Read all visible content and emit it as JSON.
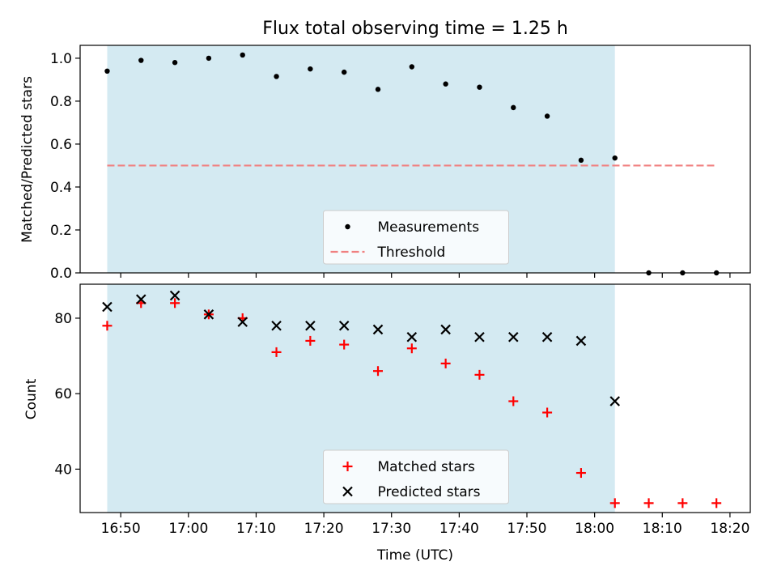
{
  "chart_data": [
    {
      "type": "scatter",
      "title": "Flux total observing time = 1.25 h",
      "xlabel": "",
      "ylabel": "Matched/Predicted stars",
      "ylim": [
        0,
        1.06
      ],
      "yticks": [
        0.0,
        0.2,
        0.4,
        0.6,
        0.8,
        1.0
      ],
      "ytick_labels": [
        "0.0",
        "0.2",
        "0.4",
        "0.6",
        "0.8",
        "1.0"
      ],
      "x_time_range": [
        "16:44",
        "18:23"
      ],
      "shaded_span": [
        "16:48",
        "18:03"
      ],
      "shade_color": "#add8e6",
      "legend_position": "lower center",
      "series": [
        {
          "name": "Measurements",
          "marker": "dot",
          "color": "#000000",
          "x": [
            "16:48",
            "16:53",
            "16:58",
            "17:03",
            "17:08",
            "17:13",
            "17:18",
            "17:23",
            "17:28",
            "17:33",
            "17:38",
            "17:43",
            "17:48",
            "17:53",
            "17:58",
            "18:03",
            "18:08",
            "18:13",
            "18:18"
          ],
          "y": [
            0.94,
            0.99,
            0.98,
            1.0,
            1.015,
            0.915,
            0.95,
            0.935,
            0.855,
            0.96,
            0.88,
            0.865,
            0.77,
            0.73,
            0.525,
            0.535,
            0.0,
            0.0,
            0.0
          ]
        },
        {
          "name": "Threshold",
          "marker": "dashed-line",
          "color": "#f08080",
          "x": [
            "16:48",
            "18:18"
          ],
          "y": [
            0.5,
            0.5
          ]
        }
      ]
    },
    {
      "type": "scatter",
      "title": "",
      "xlabel": "Time (UTC)",
      "ylabel": "Count",
      "ylim": [
        28.5,
        89
      ],
      "yticks": [
        40,
        60,
        80
      ],
      "ytick_labels": [
        "40",
        "60",
        "80"
      ],
      "xticks": [
        "16:50",
        "17:00",
        "17:10",
        "17:20",
        "17:30",
        "17:40",
        "17:50",
        "18:00",
        "18:10",
        "18:20"
      ],
      "x_time_range": [
        "16:44",
        "18:23"
      ],
      "shaded_span": [
        "16:48",
        "18:03"
      ],
      "shade_color": "#add8e6",
      "legend_position": "lower center",
      "series": [
        {
          "name": "Matched stars",
          "marker": "plus",
          "color": "#ff0000",
          "x": [
            "16:48",
            "16:53",
            "16:58",
            "17:03",
            "17:08",
            "17:13",
            "17:18",
            "17:23",
            "17:28",
            "17:33",
            "17:38",
            "17:43",
            "17:48",
            "17:53",
            "17:58",
            "18:03",
            "18:08",
            "18:13",
            "18:18"
          ],
          "y": [
            78,
            84,
            84,
            81,
            80,
            71,
            74,
            73,
            66,
            72,
            68,
            65,
            58,
            55,
            39,
            31,
            31,
            31,
            31
          ]
        },
        {
          "name": "Predicted stars",
          "marker": "x",
          "color": "#000000",
          "x": [
            "16:48",
            "16:53",
            "16:58",
            "17:03",
            "17:08",
            "17:13",
            "17:18",
            "17:23",
            "17:28",
            "17:33",
            "17:38",
            "17:43",
            "17:48",
            "17:53",
            "17:58",
            "18:03"
          ],
          "y": [
            83,
            85,
            86,
            81,
            79,
            78,
            78,
            78,
            77,
            75,
            77,
            75,
            75,
            75,
            74,
            58
          ]
        }
      ]
    }
  ]
}
